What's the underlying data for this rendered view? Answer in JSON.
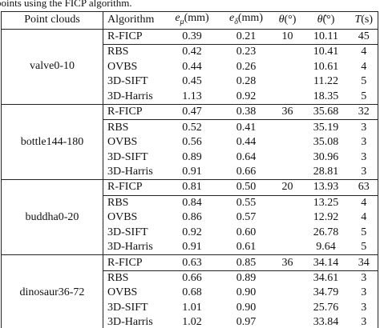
{
  "caption": "points using the FICP algorithm.",
  "table": {
    "columns": [
      {
        "symbol": "Point clouds"
      },
      {
        "symbol": "Algorithm"
      },
      {
        "symbol": "e",
        "sub": "μ",
        "unit": "(mm)"
      },
      {
        "symbol": "e",
        "sub": "δ",
        "unit": "(mm)"
      },
      {
        "symbol": "θ",
        "unit": "(°)"
      },
      {
        "symbol": "θ̂",
        "unit": "(°)"
      },
      {
        "symbol": "T",
        "unit": "(s)"
      }
    ],
    "groups": [
      {
        "name": "valve0-10",
        "rows": [
          [
            "R-FICP",
            "0.39",
            "0.21",
            "10",
            "10.11",
            "45"
          ],
          [
            "RBS",
            "0.42",
            "0.23",
            null,
            "10.41",
            "4"
          ],
          [
            "OVBS",
            "0.44",
            "0.26",
            null,
            "10.61",
            "4"
          ],
          [
            "3D-SIFT",
            "0.45",
            "0.28",
            null,
            "11.22",
            "5"
          ],
          [
            "3D-Harris",
            "1.13",
            "0.92",
            null,
            "18.35",
            "5"
          ]
        ]
      },
      {
        "name": "bottle144-180",
        "rows": [
          [
            "R-FICP",
            "0.47",
            "0.38",
            "36",
            "35.68",
            "32"
          ],
          [
            "RBS",
            "0.52",
            "0.41",
            null,
            "35.19",
            "3"
          ],
          [
            "OVBS",
            "0.56",
            "0.44",
            null,
            "35.08",
            "3"
          ],
          [
            "3D-SIFT",
            "0.89",
            "0.64",
            null,
            "30.96",
            "3"
          ],
          [
            "3D-Harris",
            "0.91",
            "0.66",
            null,
            "28.81",
            "3"
          ]
        ]
      },
      {
        "name": "buddha0-20",
        "rows": [
          [
            "R-FICP",
            "0.81",
            "0.50",
            "20",
            "13.93",
            "63"
          ],
          [
            "RBS",
            "0.84",
            "0.55",
            null,
            "13.25",
            "4"
          ],
          [
            "OVBS",
            "0.86",
            "0.57",
            null,
            "12.92",
            "4"
          ],
          [
            "3D-SIFT",
            "0.92",
            "0.60",
            null,
            "26.78",
            "5"
          ],
          [
            "3D-Harris",
            "0.91",
            "0.61",
            null,
            "9.64",
            "5"
          ]
        ]
      },
      {
        "name": "dinosaur36-72",
        "rows": [
          [
            "R-FICP",
            "0.63",
            "0.85",
            "36",
            "34.14",
            "34"
          ],
          [
            "RBS",
            "0.66",
            "0.89",
            null,
            "34.61",
            "3"
          ],
          [
            "OVBS",
            "0.68",
            "0.90",
            null,
            "34.79",
            "3"
          ],
          [
            "3D-SIFT",
            "1.01",
            "0.90",
            null,
            "25.76",
            "3"
          ],
          [
            "3D-Harris",
            "1.02",
            "0.97",
            null,
            "33.84",
            "3"
          ]
        ]
      }
    ]
  }
}
